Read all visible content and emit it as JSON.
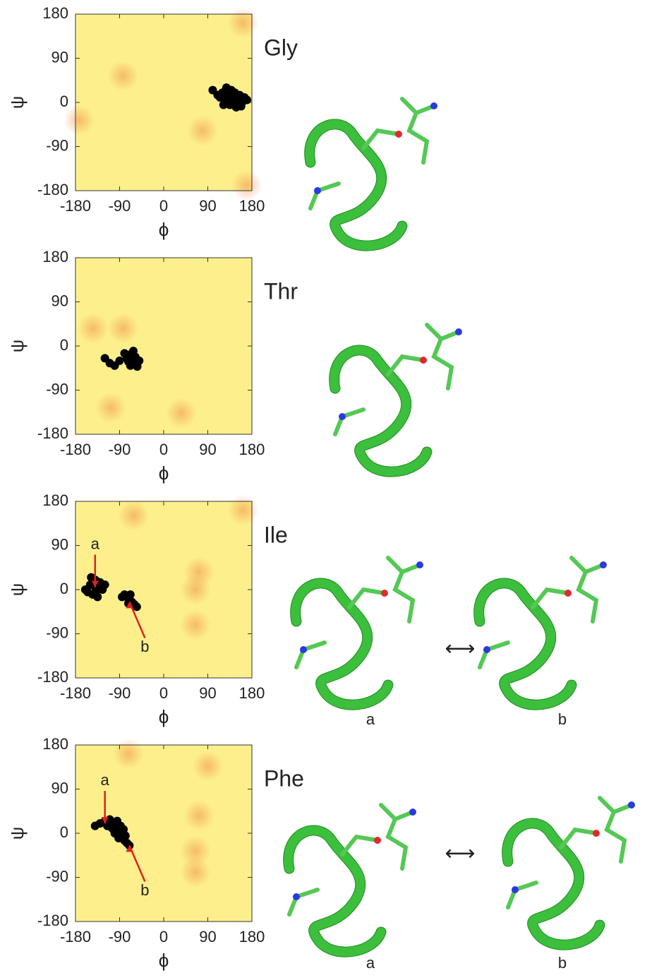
{
  "chart_data": [
    {
      "type": "scatter",
      "title": "Gly",
      "xlabel": "ϕ",
      "ylabel": "ψ",
      "xlim": [
        -180,
        180
      ],
      "ylim": [
        -180,
        180
      ],
      "xticks": [
        -180,
        -90,
        0,
        90,
        180
      ],
      "yticks": [
        -180,
        -90,
        0,
        90,
        180
      ],
      "background": "#fdf08c",
      "series": [
        {
          "color": "#000000",
          "x": [
            120,
            130,
            140,
            150,
            145,
            125,
            135,
            155,
            160,
            115,
            138,
            148,
            128,
            110,
            165,
            142,
            132,
            152,
            100,
            170,
            122,
            158
          ],
          "y": [
            20,
            15,
            10,
            5,
            20,
            0,
            -5,
            15,
            0,
            10,
            25,
            -10,
            30,
            15,
            10,
            0,
            8,
            12,
            25,
            5,
            -5,
            -8
          ]
        }
      ]
    },
    {
      "type": "scatter",
      "title": "Thr",
      "xlabel": "ϕ",
      "ylabel": "ψ",
      "xlim": [
        -180,
        180
      ],
      "ylim": [
        -180,
        180
      ],
      "xticks": [
        -180,
        -90,
        0,
        90,
        180
      ],
      "yticks": [
        -180,
        -90,
        0,
        90,
        180
      ],
      "background": "#fdf08c",
      "series": [
        {
          "color": "#000000",
          "x": [
            -70,
            -65,
            -60,
            -75,
            -55,
            -68,
            -62,
            -72,
            -58,
            -50,
            -80,
            -66,
            -54,
            -110,
            -100,
            -120,
            -90
          ],
          "y": [
            -20,
            -15,
            -30,
            -25,
            -35,
            -40,
            -10,
            -32,
            -22,
            -30,
            -15,
            -28,
            -42,
            -35,
            -40,
            -25,
            -30
          ]
        }
      ]
    },
    {
      "type": "scatter",
      "title": "Ile",
      "xlabel": "ϕ",
      "ylabel": "ψ",
      "xlim": [
        -180,
        180
      ],
      "ylim": [
        -180,
        180
      ],
      "xticks": [
        -180,
        -90,
        0,
        90,
        180
      ],
      "yticks": [
        -180,
        -90,
        0,
        90,
        180
      ],
      "background": "#fdf08c",
      "series": [
        {
          "color": "#000000",
          "x": [
            -150,
            -140,
            -135,
            -145,
            -130,
            -155,
            -140,
            -125,
            -160,
            -135,
            -148,
            -120,
            -75,
            -70,
            -65,
            -80,
            -60,
            -85,
            -68,
            -55,
            -72
          ],
          "y": [
            10,
            5,
            0,
            -10,
            15,
            -5,
            20,
            0,
            0,
            -15,
            25,
            10,
            -15,
            -20,
            -25,
            -10,
            -30,
            -15,
            -10,
            -35,
            -28
          ]
        }
      ],
      "annotations": [
        {
          "text": "a",
          "x": -140,
          "y": 5,
          "color": "#e02020"
        },
        {
          "text": "b",
          "x": -70,
          "y": -25,
          "color": "#e02020"
        }
      ],
      "structure_labels": [
        "a",
        "b"
      ]
    },
    {
      "type": "scatter",
      "title": "Phe",
      "xlabel": "ϕ",
      "ylabel": "ψ",
      "xlim": [
        -180,
        180
      ],
      "ylim": [
        -180,
        180
      ],
      "xticks": [
        -180,
        -90,
        0,
        90,
        180
      ],
      "yticks": [
        -180,
        -90,
        0,
        90,
        180
      ],
      "background": "#fdf08c",
      "series": [
        {
          "color": "#000000",
          "x": [
            -130,
            -120,
            -110,
            -100,
            -95,
            -90,
            -85,
            -80,
            -75,
            -70,
            -105,
            -115,
            -95,
            -88,
            -78,
            -140,
            -100,
            -92,
            -82,
            -110
          ],
          "y": [
            20,
            25,
            15,
            20,
            5,
            0,
            -5,
            -15,
            -20,
            -25,
            10,
            15,
            25,
            15,
            -5,
            15,
            0,
            -10,
            8,
            28
          ]
        }
      ],
      "annotations": [
        {
          "text": "a",
          "x": -120,
          "y": 20,
          "color": "#e02020"
        },
        {
          "text": "b",
          "x": -70,
          "y": -25,
          "color": "#e02020"
        }
      ],
      "structure_labels": [
        "a",
        "b"
      ]
    }
  ]
}
